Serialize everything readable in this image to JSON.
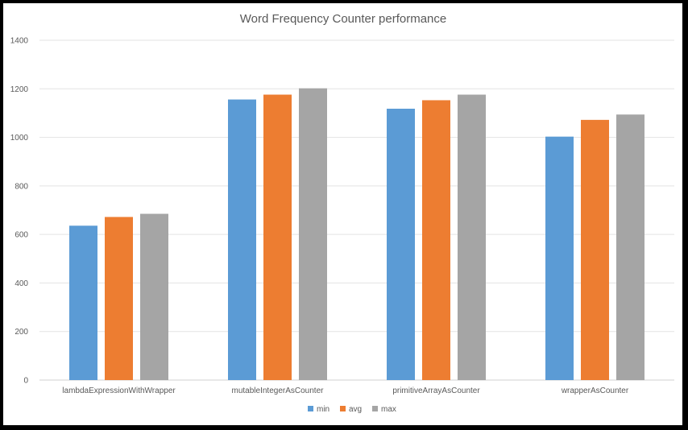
{
  "chart_data": {
    "type": "bar",
    "title": "Word Frequency Counter performance",
    "xlabel": "",
    "ylabel": "",
    "categories": [
      "lambdaExpressionWithWrapper",
      "mutableIntegerAsCounter",
      "primitiveArrayAsCounter",
      "wrapperAsCounter"
    ],
    "series": [
      {
        "name": "min",
        "color": "#5B9BD5",
        "values": [
          636,
          1156,
          1118,
          1003
        ]
      },
      {
        "name": "avg",
        "color": "#ED7D31",
        "values": [
          672,
          1176,
          1153,
          1072
        ]
      },
      {
        "name": "max",
        "color": "#A5A5A5",
        "values": [
          685,
          1202,
          1176,
          1094
        ]
      }
    ],
    "ylim": [
      0,
      1400
    ],
    "yticks": [
      "0",
      "200",
      "400",
      "600",
      "800",
      "1000",
      "1200",
      "1400"
    ],
    "grid": true,
    "legend_position": "bottom"
  }
}
